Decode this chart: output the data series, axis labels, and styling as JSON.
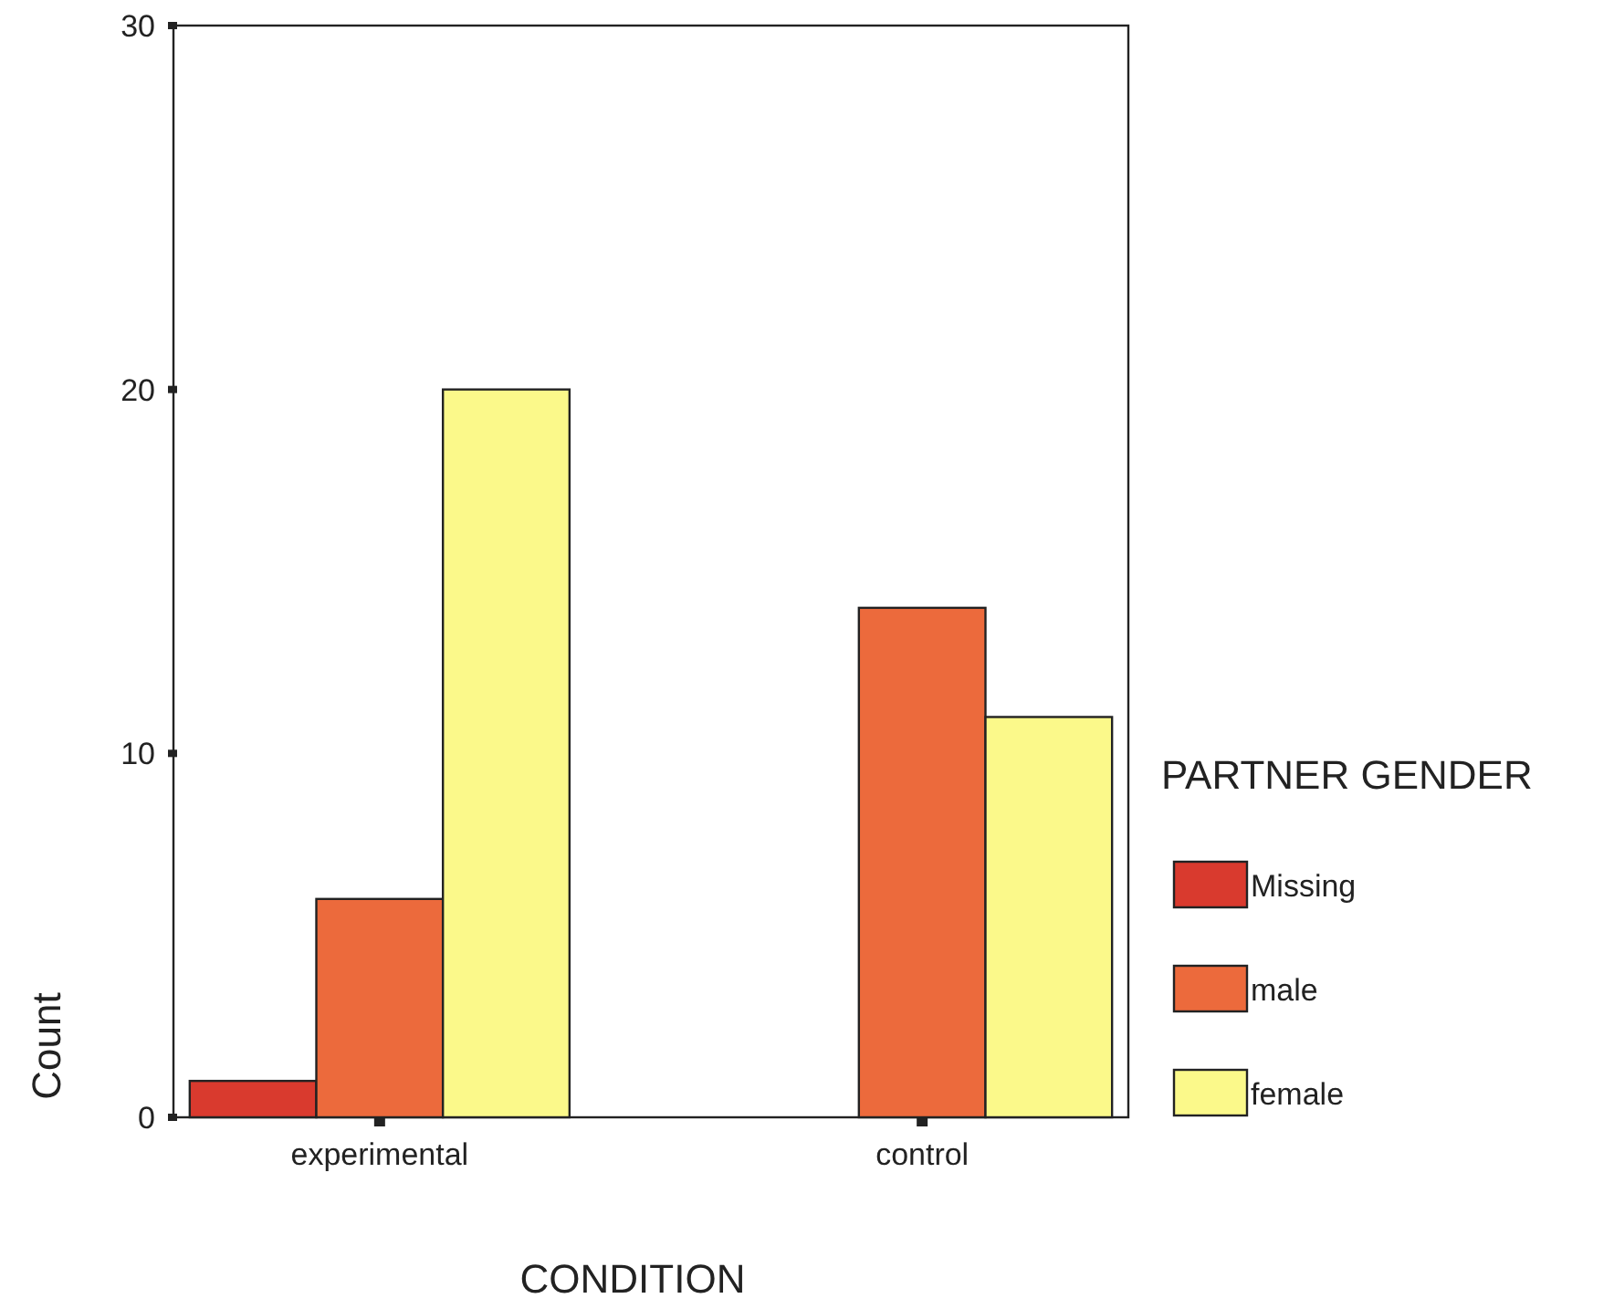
{
  "chart_data": {
    "type": "bar",
    "xlabel": "CONDITION",
    "ylabel": "Count",
    "legend_title": "PARTNER GENDER",
    "categories": [
      "experimental",
      "control"
    ],
    "series": [
      {
        "name": "Missing",
        "color": "#d93a2e",
        "values": [
          1,
          0
        ]
      },
      {
        "name": "male",
        "color": "#ec6a3c",
        "values": [
          6,
          14
        ]
      },
      {
        "name": "female",
        "color": "#fbf98a",
        "values": [
          20,
          11
        ]
      }
    ],
    "ylim": [
      0,
      30
    ],
    "yticks": [
      0,
      10,
      20,
      30
    ],
    "grid": false,
    "legend": "right"
  }
}
